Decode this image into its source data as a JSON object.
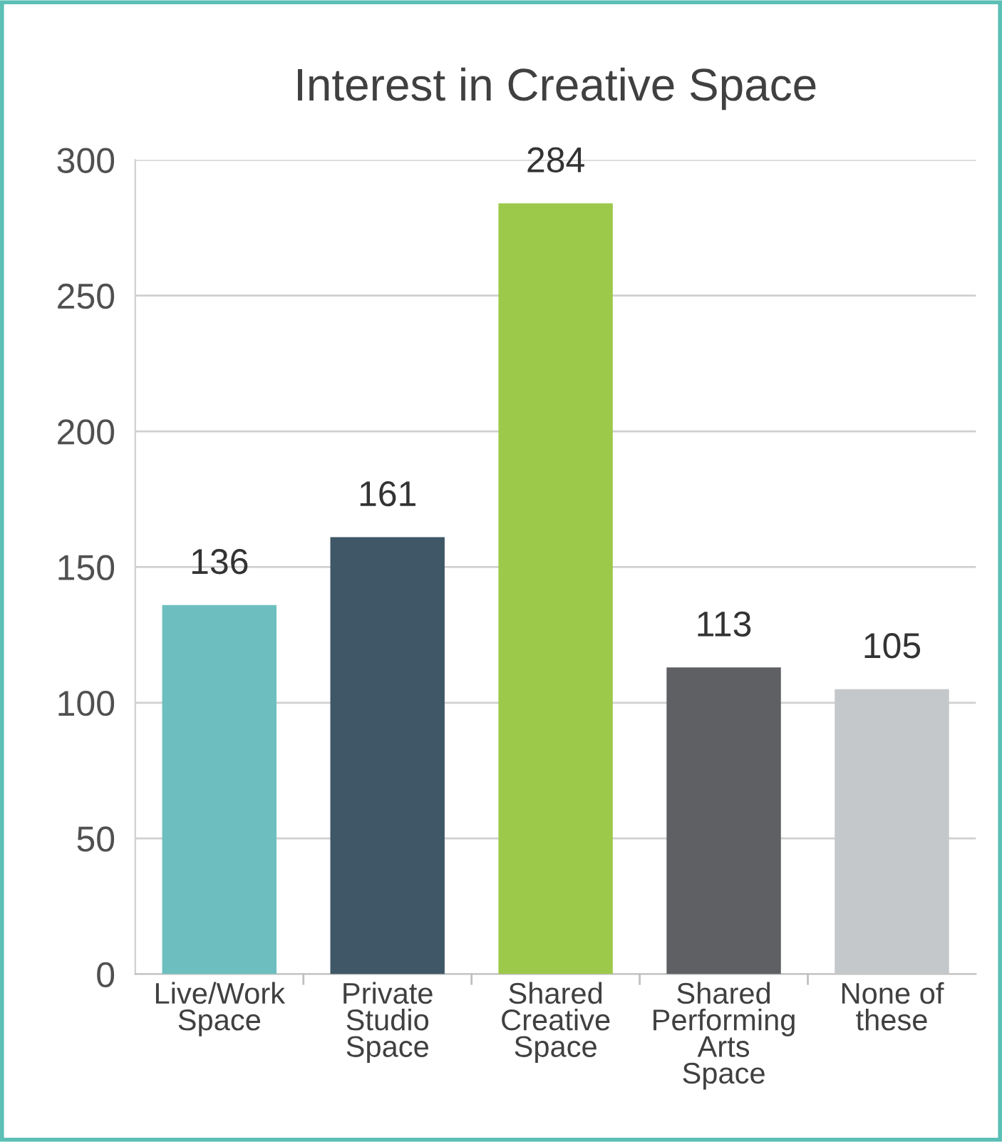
{
  "chart_data": {
    "type": "bar",
    "title": "Interest in Creative Space",
    "categories": [
      "Live/Work\nSpace",
      "Private\nStudio\nSpace",
      "Shared\nCreative\nSpace",
      "Shared\nPerforming\nArts\nSpace",
      "None of\nthese"
    ],
    "values": [
      136,
      161,
      284,
      113,
      105
    ],
    "colors": [
      "#6dbfbf",
      "#3f5766",
      "#9dc94a",
      "#5f6064",
      "#c5c8ca"
    ],
    "ylim": [
      0,
      300
    ],
    "yticks": [
      0,
      50,
      100,
      150,
      200,
      250,
      300
    ],
    "grid": "y",
    "data_labels": true
  }
}
